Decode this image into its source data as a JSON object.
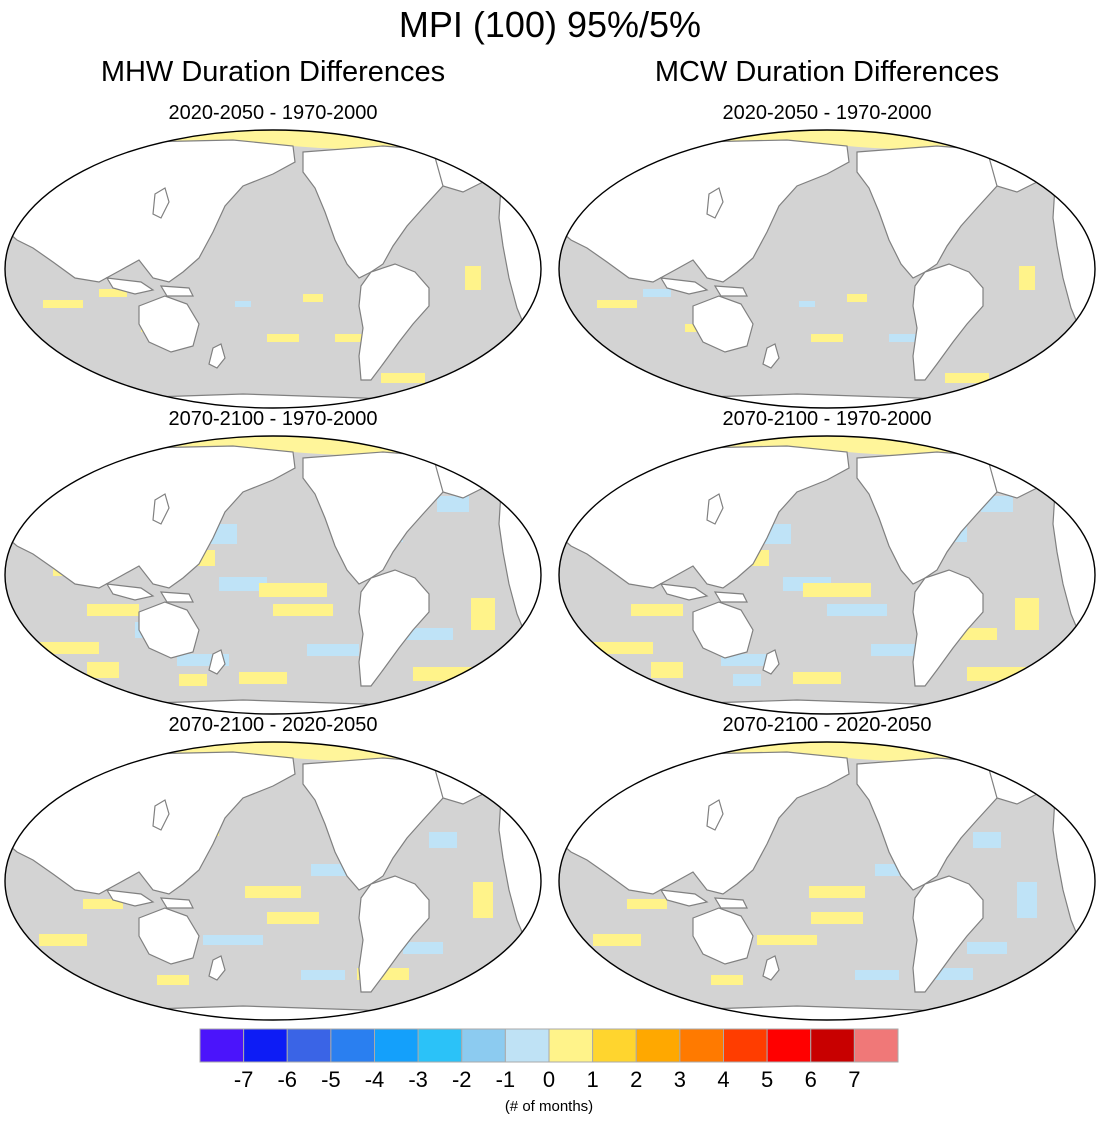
{
  "title": "MPI (100) 95%/5%",
  "columns": [
    {
      "id": "mhw",
      "title": "MHW Duration Differences"
    },
    {
      "id": "mcw",
      "title": "MCW Duration Differences"
    }
  ],
  "panels": [
    {
      "label": "2020-2050 - 1970-2000",
      "variable": "MHW",
      "intensity": "low"
    },
    {
      "label": "2020-2050 - 1970-2000",
      "variable": "MCW",
      "intensity": "low"
    },
    {
      "label": "2070-2100 - 1970-2000",
      "variable": "MHW",
      "intensity": "high"
    },
    {
      "label": "2070-2100 - 1970-2000",
      "variable": "MCW",
      "intensity": "high"
    },
    {
      "label": "2070-2100 - 2020-2050",
      "variable": "MHW",
      "intensity": "medium"
    },
    {
      "label": "2070-2100 - 2020-2050",
      "variable": "MCW",
      "intensity": "medium"
    }
  ],
  "colors": {
    "ocean": "#d3d3d3",
    "land": "#ffffff",
    "coast": "#808080",
    "arctic": "#fff59a",
    "positive": "#fff38a",
    "negative": "#bfe3f7"
  },
  "colorbar": {
    "colors": [
      "#4b14fb",
      "#0d1cf5",
      "#3a64e6",
      "#2a7ff0",
      "#14a0fb",
      "#2bc2f8",
      "#8ccbf0",
      "#bfe2f5",
      "#fff38a",
      "#ffd52e",
      "#ffa800",
      "#ff7a00",
      "#ff3d00",
      "#ff0000",
      "#c80000",
      "#f07878"
    ],
    "labels": [
      "-7",
      "-6",
      "-5",
      "-4",
      "-3",
      "-2",
      "-1",
      "0",
      "1",
      "2",
      "3",
      "4",
      "5",
      "6",
      "7"
    ],
    "units": "(# of months)"
  }
}
